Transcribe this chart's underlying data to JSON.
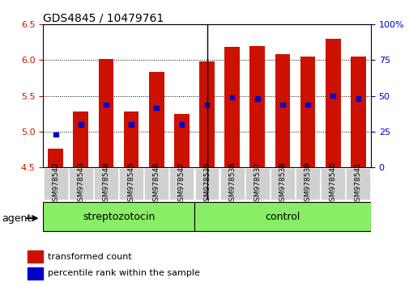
{
  "title": "GDS4845 / 10479761",
  "samples": [
    "GSM978542",
    "GSM978543",
    "GSM978544",
    "GSM978545",
    "GSM978546",
    "GSM978547",
    "GSM978535",
    "GSM978536",
    "GSM978537",
    "GSM978538",
    "GSM978539",
    "GSM978540",
    "GSM978541"
  ],
  "bar_values": [
    4.76,
    5.28,
    6.01,
    5.28,
    5.83,
    5.25,
    5.98,
    6.18,
    6.2,
    6.08,
    6.05,
    6.3,
    6.05
  ],
  "blue_values": [
    4.96,
    5.1,
    5.38,
    5.1,
    5.33,
    5.1,
    5.38,
    5.48,
    5.46,
    5.38,
    5.38,
    5.5,
    5.46
  ],
  "ylim_left": [
    4.5,
    6.5
  ],
  "ylim_right": [
    0,
    100
  ],
  "bar_color": "#cc1100",
  "blue_color": "#0000cc",
  "group1_label": "streptozotocin",
  "group2_label": "control",
  "group1_indices": [
    0,
    1,
    2,
    3,
    4,
    5
  ],
  "group2_indices": [
    6,
    7,
    8,
    9,
    10,
    11,
    12
  ],
  "group_bg_color": "#88ee66",
  "tick_label_color_left": "#cc1100",
  "tick_label_color_right": "#0000cc",
  "yticks_left": [
    4.5,
    5.0,
    5.5,
    6.0,
    6.5
  ],
  "yticks_right": [
    0,
    25,
    50,
    75,
    100
  ],
  "ytick_right_labels": [
    "0",
    "25",
    "50",
    "75",
    "100%"
  ],
  "legend_red": "transformed count",
  "legend_blue": "percentile rank within the sample",
  "baseline": 4.5,
  "bar_width": 0.6,
  "agent_label": "agent",
  "grid_color": "#000000",
  "plot_bg_color": "#ffffff",
  "separator_idx": 6.5,
  "gray_box_color": "#d0d0d0"
}
